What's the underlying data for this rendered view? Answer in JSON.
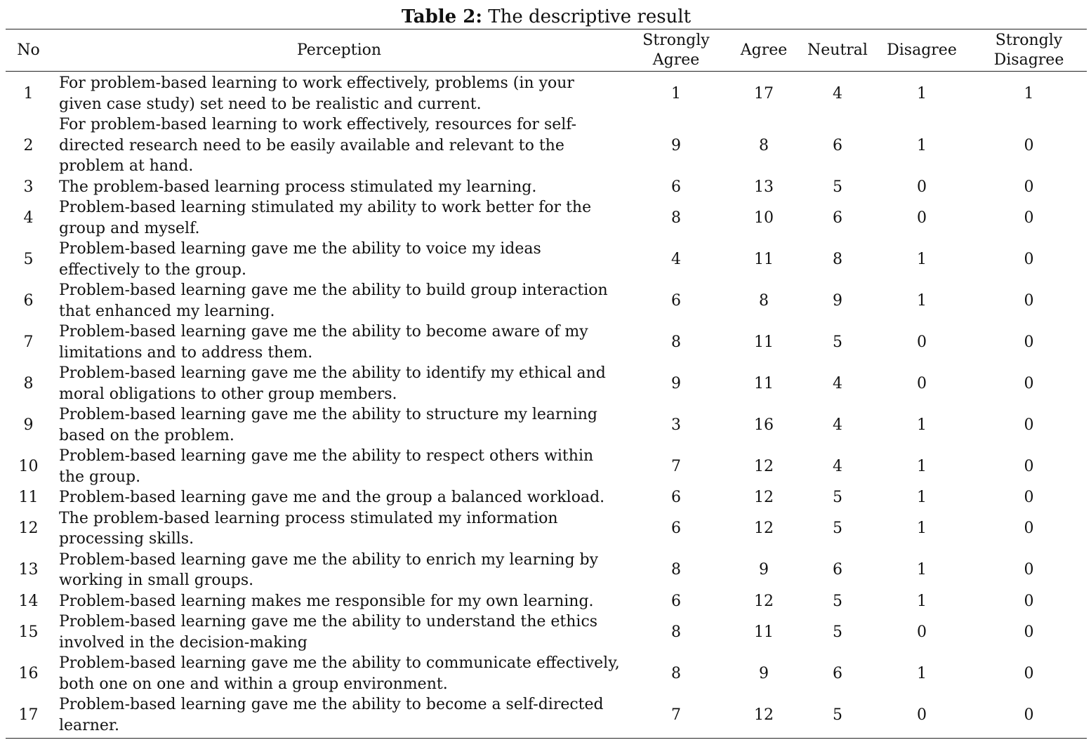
{
  "caption": {
    "label": "Table 2:",
    "text": "The descriptive result"
  },
  "table": {
    "headers": [
      "No",
      "Perception",
      "Strongly Agree",
      "Agree",
      "Neutral",
      "Disagree",
      "Strongly Disagree"
    ],
    "rows": [
      {
        "no": "1",
        "perception": "For problem-based learning to work effectively, problems (in your given case study) set need to be realistic and current.",
        "strongly_agree": "1",
        "agree": "17",
        "neutral": "4",
        "disagree": "1",
        "strongly_disagree": "1"
      },
      {
        "no": "2",
        "perception": "For problem-based learning to work effectively, resources for self-directed research need to be easily available and relevant to the problem at hand.",
        "strongly_agree": "9",
        "agree": "8",
        "neutral": "6",
        "disagree": "1",
        "strongly_disagree": "0"
      },
      {
        "no": "3",
        "perception": "The problem-based learning process stimulated my learning.",
        "strongly_agree": "6",
        "agree": "13",
        "neutral": "5",
        "disagree": "0",
        "strongly_disagree": "0"
      },
      {
        "no": "4",
        "perception": "Problem-based learning stimulated my ability to work better for the group and myself.",
        "strongly_agree": "8",
        "agree": "10",
        "neutral": "6",
        "disagree": "0",
        "strongly_disagree": "0"
      },
      {
        "no": "5",
        "perception": "Problem-based learning gave me the ability to voice my ideas effectively to the group.",
        "strongly_agree": "4",
        "agree": "11",
        "neutral": "8",
        "disagree": "1",
        "strongly_disagree": "0"
      },
      {
        "no": "6",
        "perception": "Problem-based learning gave me the ability to build group interaction that enhanced my learning.",
        "strongly_agree": "6",
        "agree": "8",
        "neutral": "9",
        "disagree": "1",
        "strongly_disagree": "0"
      },
      {
        "no": "7",
        "perception": "Problem-based learning gave me the ability to become aware of my limitations and to address them.",
        "strongly_agree": "8",
        "agree": "11",
        "neutral": "5",
        "disagree": "0",
        "strongly_disagree": "0"
      },
      {
        "no": "8",
        "perception": "Problem-based learning gave me the ability to identify my ethical and moral obligations to other group members.",
        "strongly_agree": "9",
        "agree": "11",
        "neutral": "4",
        "disagree": "0",
        "strongly_disagree": "0"
      },
      {
        "no": "9",
        "perception": "Problem-based learning gave me the ability to structure my learning based on the problem.",
        "strongly_agree": "3",
        "agree": "16",
        "neutral": "4",
        "disagree": "1",
        "strongly_disagree": "0"
      },
      {
        "no": "10",
        "perception": "Problem-based learning gave me the ability to respect others within the group.",
        "strongly_agree": "7",
        "agree": "12",
        "neutral": "4",
        "disagree": "1",
        "strongly_disagree": "0"
      },
      {
        "no": "11",
        "perception": "Problem-based learning gave me and the group a balanced workload.",
        "strongly_agree": "6",
        "agree": "12",
        "neutral": "5",
        "disagree": "1",
        "strongly_disagree": "0"
      },
      {
        "no": "12",
        "perception": "The problem-based learning process stimulated my information processing skills.",
        "strongly_agree": "6",
        "agree": "12",
        "neutral": "5",
        "disagree": "1",
        "strongly_disagree": "0"
      },
      {
        "no": "13",
        "perception": "Problem-based learning gave me the ability to enrich my learning by working in small groups.",
        "strongly_agree": "8",
        "agree": "9",
        "neutral": "6",
        "disagree": "1",
        "strongly_disagree": "0"
      },
      {
        "no": "14",
        "perception": "Problem-based learning makes me responsible for my own learning.",
        "strongly_agree": "6",
        "agree": "12",
        "neutral": "5",
        "disagree": "1",
        "strongly_disagree": "0"
      },
      {
        "no": "15",
        "perception": "Problem-based learning gave me the ability to understand the ethics involved in the decision-making",
        "strongly_agree": "8",
        "agree": "11",
        "neutral": "5",
        "disagree": "0",
        "strongly_disagree": "0"
      },
      {
        "no": "16",
        "perception": "Problem-based learning gave me the ability to communicate effectively, both one on one and within a group environment.",
        "strongly_agree": "8",
        "agree": "9",
        "neutral": "6",
        "disagree": "1",
        "strongly_disagree": "0"
      },
      {
        "no": "17",
        "perception": "Problem-based learning gave me the ability to become a self-directed learner.",
        "strongly_agree": "7",
        "agree": "12",
        "neutral": "5",
        "disagree": "0",
        "strongly_disagree": "0"
      }
    ]
  }
}
